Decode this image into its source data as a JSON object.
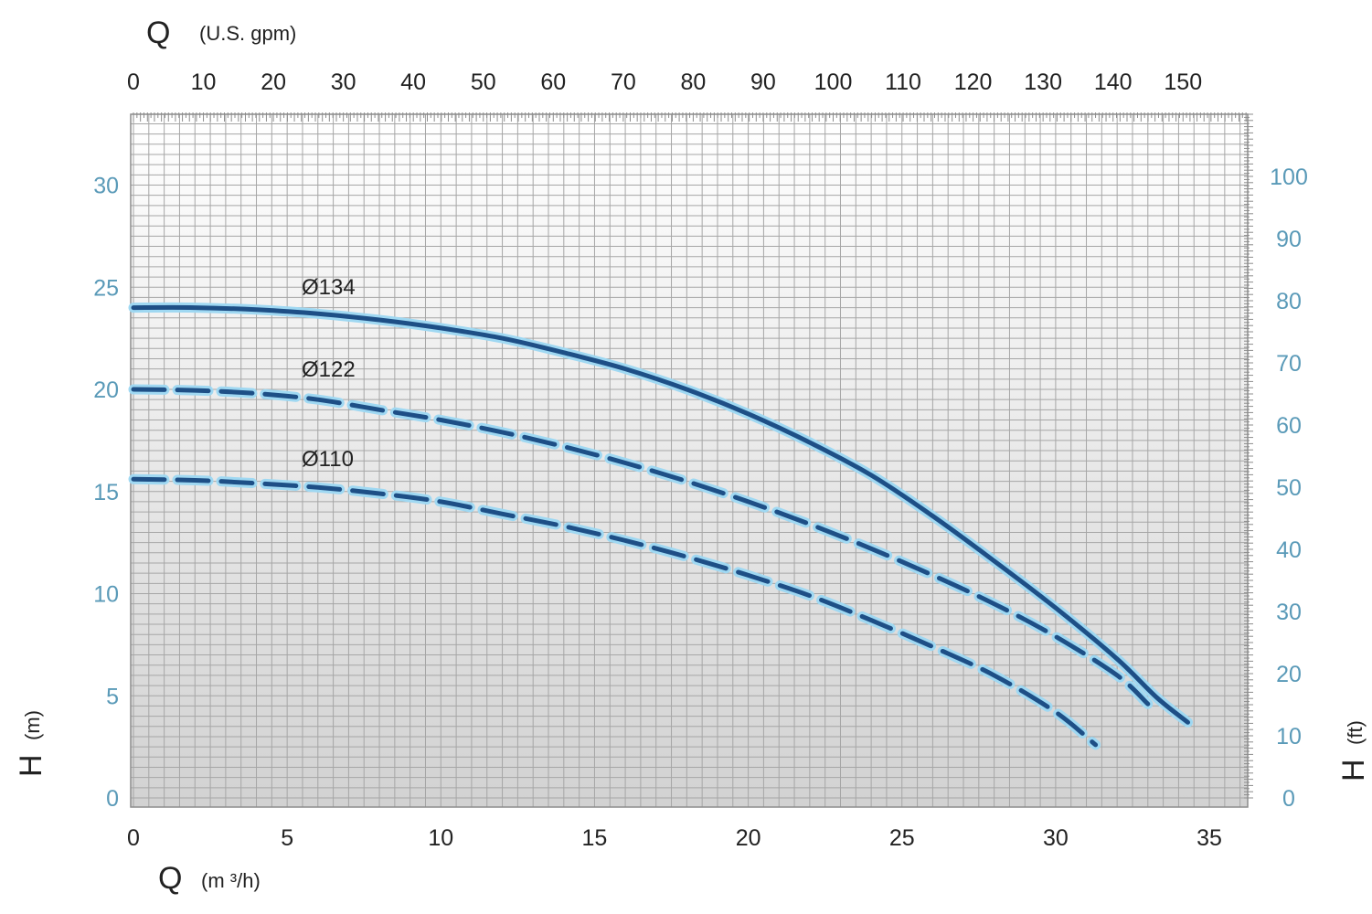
{
  "chart_data": {
    "type": "line",
    "x_bottom": {
      "symbol": "Q",
      "unit": "(m ³/h)",
      "ticks": [
        "0",
        "5",
        "10",
        "15",
        "20",
        "25",
        "30",
        "35"
      ],
      "range": [
        0,
        36.2
      ]
    },
    "x_top": {
      "symbol": "Q",
      "unit": "(U.S. gpm)",
      "ticks": [
        "0",
        "10",
        "20",
        "30",
        "40",
        "50",
        "60",
        "70",
        "80",
        "90",
        "100",
        "110",
        "120",
        "130",
        "140",
        "150"
      ],
      "range": [
        0,
        159.4
      ]
    },
    "y_left": {
      "symbol": "H",
      "unit": "(m)",
      "ticks": [
        "0",
        "5",
        "10",
        "15",
        "20",
        "25",
        "30"
      ],
      "range": [
        0,
        33
      ]
    },
    "y_right": {
      "symbol": "H",
      "unit": "(ft)",
      "ticks": [
        "0",
        "10",
        "20",
        "30",
        "40",
        "50",
        "60",
        "70",
        "80",
        "90",
        "100"
      ]
    },
    "grid": true,
    "series": [
      {
        "name": "Ø134",
        "style": "solid",
        "color": "#1e4f86",
        "points": [
          [
            0,
            24.0
          ],
          [
            2,
            24.0
          ],
          [
            4,
            23.9
          ],
          [
            6,
            23.7
          ],
          [
            8,
            23.4
          ],
          [
            10,
            23.0
          ],
          [
            12,
            22.5
          ],
          [
            14,
            21.8
          ],
          [
            16,
            21.0
          ],
          [
            18,
            20.0
          ],
          [
            20,
            18.8
          ],
          [
            22,
            17.4
          ],
          [
            24,
            15.8
          ],
          [
            26,
            13.8
          ],
          [
            28,
            11.6
          ],
          [
            30,
            9.3
          ],
          [
            32,
            6.8
          ],
          [
            33.3,
            4.9
          ],
          [
            34.3,
            3.7
          ]
        ]
      },
      {
        "name": "Ø122",
        "style": "dashed",
        "color": "#1e4f86",
        "points": [
          [
            0,
            20.0
          ],
          [
            2,
            19.95
          ],
          [
            4,
            19.8
          ],
          [
            6,
            19.5
          ],
          [
            8,
            19.0
          ],
          [
            10,
            18.5
          ],
          [
            12,
            17.9
          ],
          [
            14,
            17.2
          ],
          [
            16,
            16.4
          ],
          [
            18,
            15.5
          ],
          [
            20,
            14.5
          ],
          [
            22,
            13.4
          ],
          [
            24,
            12.2
          ],
          [
            26,
            10.9
          ],
          [
            28,
            9.5
          ],
          [
            30,
            7.9
          ],
          [
            32,
            6.0
          ],
          [
            33.0,
            4.6
          ]
        ]
      },
      {
        "name": "Ø110",
        "style": "dashed",
        "color": "#1e4f86",
        "points": [
          [
            0,
            15.6
          ],
          [
            2,
            15.55
          ],
          [
            4,
            15.4
          ],
          [
            6,
            15.2
          ],
          [
            8,
            14.9
          ],
          [
            10,
            14.5
          ],
          [
            12,
            13.9
          ],
          [
            14,
            13.3
          ],
          [
            16,
            12.6
          ],
          [
            18,
            11.8
          ],
          [
            20,
            10.9
          ],
          [
            22,
            9.9
          ],
          [
            24,
            8.7
          ],
          [
            26,
            7.4
          ],
          [
            28,
            6.0
          ],
          [
            30,
            4.2
          ],
          [
            31.3,
            2.6
          ]
        ]
      }
    ]
  }
}
